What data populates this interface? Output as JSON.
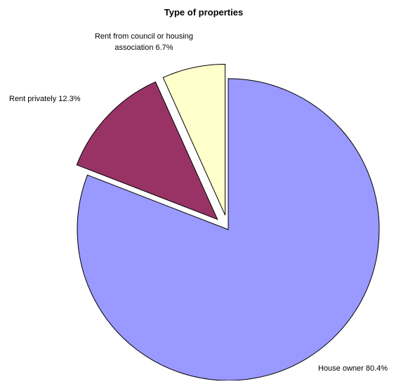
{
  "chart_data": {
    "type": "pie",
    "title": "Type of properties",
    "slices": [
      {
        "label": "House owner",
        "value": 80.4,
        "display": "House owner 80.4%",
        "color": "#9999ff",
        "exploded": false
      },
      {
        "label": "Rent privately",
        "value": 12.3,
        "display": "Rent privately 12.3%",
        "color": "#993366",
        "exploded": true
      },
      {
        "label": "Rent from council or housing association",
        "value": 6.7,
        "display": "Rent from council or housing association 6.7%",
        "display_lines": [
          "Rent from council or housing",
          "association 6.7%"
        ],
        "color": "#ffffcc",
        "exploded": true
      }
    ],
    "start_angle": "12 o'clock",
    "direction": "clockwise",
    "legend": "none"
  }
}
